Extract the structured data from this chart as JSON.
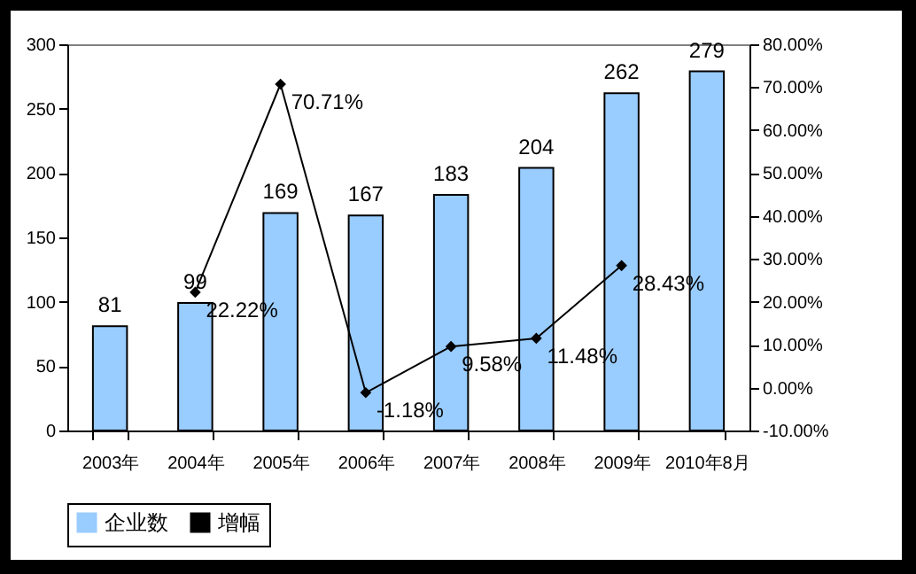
{
  "chart_data": {
    "type": "bar",
    "categories": [
      "2003年",
      "2004年",
      "2005年",
      "2006年",
      "2007年",
      "2008年",
      "2009年",
      "2010年8月"
    ],
    "series": [
      {
        "name": "企业数",
        "color": "#99ccff",
        "values": [
          81,
          99,
          169,
          167,
          183,
          204,
          262,
          279
        ],
        "value_labels": [
          "81",
          "99",
          "169",
          "167",
          "183",
          "204",
          "262",
          "279"
        ]
      },
      {
        "name": "增幅",
        "type": "line",
        "axis": "y2",
        "color": "#000000",
        "values": [
          null,
          22.22,
          70.71,
          -1.18,
          9.58,
          11.48,
          28.43,
          null
        ],
        "value_labels": [
          null,
          "22.22%",
          "70.71%",
          "-1.18%",
          "9.58%",
          "11.48%",
          "28.43%",
          null
        ]
      }
    ],
    "ylim": [
      0,
      300
    ],
    "yticks": [
      0,
      50,
      100,
      150,
      200,
      250,
      300
    ],
    "y2lim": [
      -10,
      80
    ],
    "y2ticks": [
      {
        "value": -10,
        "label": "-10.00%"
      },
      {
        "value": 0,
        "label": "0.00%"
      },
      {
        "value": 10,
        "label": "10.00%"
      },
      {
        "value": 20,
        "label": "20.00%"
      },
      {
        "value": 30,
        "label": "30.00%"
      },
      {
        "value": 40,
        "label": "40.00%"
      },
      {
        "value": 50,
        "label": "50.00%"
      },
      {
        "value": 60,
        "label": "60.00%"
      },
      {
        "value": 70,
        "label": "70.00%"
      },
      {
        "value": 80,
        "label": "80.00%"
      }
    ],
    "marker": "diamond",
    "line_style": "solid",
    "legend": "bottom"
  }
}
